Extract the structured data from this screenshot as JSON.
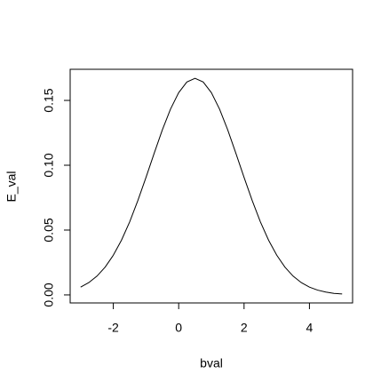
{
  "chart_data": {
    "type": "line",
    "x_label": "bval",
    "y_label": "E_val",
    "x": [
      -3,
      -2.75,
      -2.5,
      -2.25,
      -2,
      -1.75,
      -1.5,
      -1.25,
      -1,
      -0.75,
      -0.5,
      -0.25,
      0,
      0.25,
      0.5,
      0.75,
      1,
      1.25,
      1.5,
      1.75,
      2,
      2.25,
      2.5,
      2.75,
      3,
      3.25,
      3.5,
      3.75,
      4,
      4.25,
      4.5,
      4.75,
      5
    ],
    "values": [
      0.006,
      0.0095,
      0.0145,
      0.0214,
      0.0306,
      0.0422,
      0.0563,
      0.0727,
      0.0906,
      0.1092,
      0.1273,
      0.1433,
      0.156,
      0.1642,
      0.167,
      0.1642,
      0.156,
      0.1433,
      0.1273,
      0.1092,
      0.0906,
      0.0727,
      0.0563,
      0.0422,
      0.0306,
      0.0214,
      0.0145,
      0.0095,
      0.006,
      0.0037,
      0.0022,
      0.0012,
      0.0007
    ],
    "color": "#000000",
    "xlim": [
      -3.32,
      5.32
    ],
    "xticks": [
      -2,
      0,
      2,
      4
    ],
    "ylim": [
      -0.0062,
      0.174
    ],
    "yticks": [
      {
        "value": 0,
        "label": "0.00"
      },
      0.05,
      {
        "value": 0.1,
        "label": "0.10"
      },
      0.15
    ]
  }
}
